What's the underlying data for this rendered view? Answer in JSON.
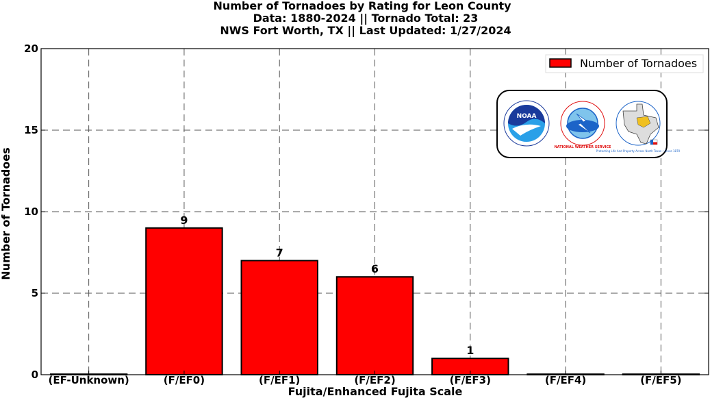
{
  "chart_data": {
    "type": "bar",
    "title": [
      "Number of Tornadoes by Rating for Leon County",
      "Data: 1880-2024 || Tornado Total: 23",
      "NWS Fort Worth, TX || Last Updated: 1/27/2024"
    ],
    "categories": [
      "(EF-Unknown)",
      "(F/EF0)",
      "(F/EF1)",
      "(F/EF2)",
      "(F/EF3)",
      "(F/EF4)",
      "(F/EF5)"
    ],
    "series": [
      {
        "name": "Number of Tornadoes",
        "values": [
          0,
          9,
          7,
          6,
          1,
          0,
          0
        ],
        "color": "#ff0000"
      }
    ],
    "data_labels": [
      "",
      "9",
      "7",
      "6",
      "1",
      "",
      ""
    ],
    "xlabel": "Fujita/Enhanced Fujita Scale",
    "ylabel": "Number of Tornadoes",
    "ylim": [
      0,
      20
    ],
    "yticks": [
      "0",
      "5",
      "10",
      "15",
      "20"
    ],
    "grid": true,
    "legend_position": "top-right"
  },
  "logos": {
    "noaa": {
      "name": "noaa-logo",
      "text": "NOAA"
    },
    "nws": {
      "name": "nws-logo",
      "text": "NATIONAL WEATHER SERVICE"
    },
    "fortworth": {
      "name": "nws-fort-worth-logo",
      "text": "Protecting Life And Property Across North Texas • Since 1870"
    }
  },
  "colors": {
    "bar_fill": "#ff0000",
    "bar_stroke": "#000000",
    "noaa_blue": "#1a3a9c",
    "noaa_light": "#2aa0e8",
    "nws_blue": "#1c64c8",
    "nws_red": "#e01010"
  }
}
